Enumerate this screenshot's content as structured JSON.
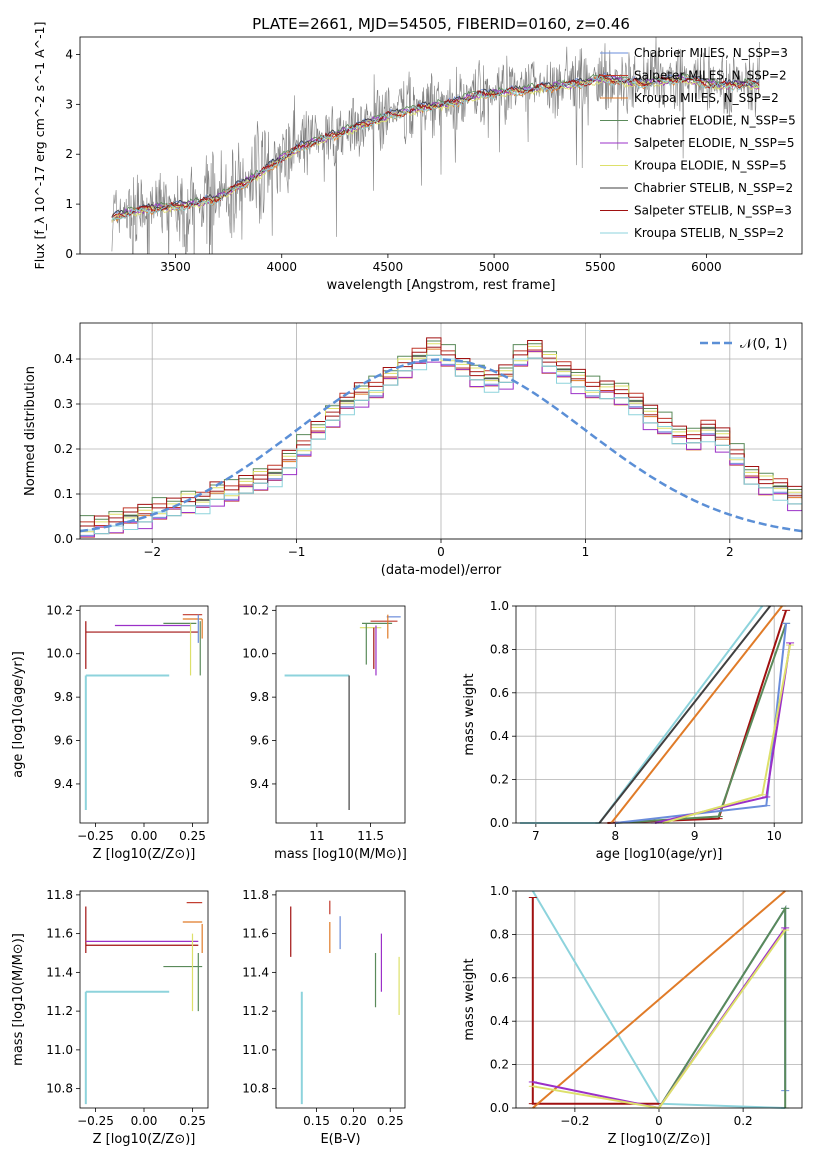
{
  "chart_data": [
    {
      "id": "spectrum",
      "type": "line",
      "title": "PLATE=2661, MJD=54505, FIBERID=0160, z=0.46",
      "xlabel": "wavelength [Angstrom, rest frame]",
      "ylabel": "Flux [f_λ 10^-17 erg cm^-2 s^-1 A^-1]",
      "xlim": [
        3050,
        6450
      ],
      "ylim": [
        0,
        4.35
      ],
      "xticks": [
        3500,
        4000,
        4500,
        5000,
        5500,
        6000
      ],
      "yticks": [
        0,
        1,
        2,
        3,
        4
      ],
      "grid": false,
      "legend_placement": "top-right",
      "series": [
        {
          "name": "Chabrier MILES, N_SSP=3",
          "color": "#6a8cdb"
        },
        {
          "name": "Salpeter MILES, N_SSP=2",
          "color": "#c0392b"
        },
        {
          "name": "Kroupa MILES, N_SSP=2",
          "color": "#e07b28"
        },
        {
          "name": "Chabrier ELODIE, N_SSP=5",
          "color": "#5a8a5a"
        },
        {
          "name": "Salpeter ELODIE, N_SSP=5",
          "color": "#9b30c8"
        },
        {
          "name": "Kroupa ELODIE, N_SSP=5",
          "color": "#dde06a"
        },
        {
          "name": "Chabrier STELIB, N_SSP=2",
          "color": "#404040"
        },
        {
          "name": "Salpeter STELIB, N_SSP=3",
          "color": "#a01010"
        },
        {
          "name": "Kroupa STELIB, N_SSP=2",
          "color": "#8dd3dc"
        }
      ],
      "model_continuum": {
        "x": [
          3200,
          3300,
          3400,
          3500,
          3600,
          3700,
          3800,
          3900,
          4000,
          4100,
          4200,
          4300,
          4400,
          4500,
          4600,
          4700,
          4800,
          4900,
          5000,
          5100,
          5200,
          5300,
          5400,
          5500,
          5600,
          5700,
          5800,
          5900,
          6000,
          6100,
          6200,
          6250
        ],
        "y": [
          0.75,
          0.9,
          0.95,
          0.98,
          1.05,
          1.15,
          1.4,
          1.65,
          1.95,
          2.2,
          2.35,
          2.5,
          2.65,
          2.8,
          2.9,
          3.0,
          3.05,
          3.2,
          3.25,
          3.3,
          3.35,
          3.4,
          3.45,
          3.55,
          3.5,
          3.45,
          3.5,
          3.55,
          3.45,
          3.4,
          3.45,
          3.4
        ]
      },
      "observed_color": "#808080"
    },
    {
      "id": "residuals",
      "type": "bar",
      "xlabel": "(data-model)/error",
      "ylabel": "Normed distribution",
      "xlim": [
        -2.5,
        2.5
      ],
      "ylim": [
        0,
        0.48
      ],
      "xticks": [
        -2,
        -1,
        0,
        1,
        2
      ],
      "yticks": [
        0.0,
        0.1,
        0.2,
        0.3,
        0.4
      ],
      "grid": true,
      "legend": [
        "N(0,1)"
      ],
      "legend_placement": "top-right",
      "gaussian_color": "#5b8fd6",
      "bin_edges_start": -2.5,
      "bin_width": 0.1,
      "values": [
        0.02,
        0.03,
        0.035,
        0.045,
        0.05,
        0.06,
        0.07,
        0.08,
        0.08,
        0.1,
        0.1,
        0.12,
        0.13,
        0.14,
        0.17,
        0.2,
        0.24,
        0.27,
        0.3,
        0.32,
        0.33,
        0.36,
        0.38,
        0.4,
        0.42,
        0.4,
        0.38,
        0.36,
        0.35,
        0.36,
        0.4,
        0.42,
        0.39,
        0.37,
        0.35,
        0.33,
        0.33,
        0.32,
        0.3,
        0.27,
        0.25,
        0.23,
        0.22,
        0.24,
        0.22,
        0.18,
        0.14,
        0.12,
        0.11,
        0.09,
        0.08,
        0.07,
        0.06,
        0.05,
        0.05,
        0.04,
        0.035,
        0.03,
        0.04,
        0.045,
        0.05
      ],
      "offsets": [
        0.0,
        0.012,
        -0.01,
        0.02,
        -0.015,
        0.008,
        -0.006,
        0.015,
        -0.012
      ]
    },
    {
      "id": "age-metallicity",
      "type": "scatter",
      "xlabel": "Z [log10(Z/Z⊙)]",
      "ylabel": "age  [log10(age/yr)]",
      "xlim": [
        -0.33,
        0.33
      ],
      "ylim": [
        9.22,
        10.22
      ],
      "xticks": [
        "-0.25",
        "0.00",
        "0.25"
      ],
      "xtick_values": [
        -0.25,
        0.0,
        0.25
      ],
      "yticks": [
        9.4,
        9.6,
        9.8,
        10.0,
        10.2
      ],
      "grid": false
    },
    {
      "id": "age-mass",
      "type": "scatter",
      "xlabel": "mass [log10(M/M⊙)]",
      "xlim": [
        10.62,
        11.82
      ],
      "ylim": [
        9.22,
        10.22
      ],
      "xticks": [
        11.0,
        11.5
      ],
      "yticks": [
        9.4,
        9.6,
        9.8,
        10.0,
        10.2
      ],
      "grid": false
    },
    {
      "id": "massweight-age",
      "type": "line",
      "xlabel": "age  [log10(age/yr)]",
      "ylabel": "mass weight",
      "xlim": [
        6.75,
        10.35
      ],
      "ylim": [
        0,
        1.0
      ],
      "xticks": [
        7,
        8,
        9,
        10
      ],
      "yticks": [
        0.0,
        0.2,
        0.4,
        0.6,
        0.8,
        1.0
      ],
      "grid": true,
      "series": [
        {
          "color": "#8dd3dc",
          "x": [
            6.8,
            7.8,
            9.85
          ],
          "y": [
            0.0,
            0.0,
            1.0
          ]
        },
        {
          "color": "#404040",
          "x": [
            7.8,
            9.95
          ],
          "y": [
            0.0,
            1.0
          ]
        },
        {
          "color": "#a01010",
          "x": [
            7.9,
            9.3,
            10.15
          ],
          "y": [
            0.0,
            0.02,
            0.98
          ]
        },
        {
          "color": "#e07b28",
          "x": [
            7.95,
            10.1
          ],
          "y": [
            0.0,
            1.0
          ]
        },
        {
          "color": "#5a8a5a",
          "x": [
            8.0,
            9.3,
            10.15
          ],
          "y": [
            0.0,
            0.03,
            0.92
          ]
        },
        {
          "color": "#6a8cdb",
          "x": [
            8.0,
            9.9,
            10.15
          ],
          "y": [
            0.0,
            0.08,
            0.92
          ]
        },
        {
          "color": "#9b30c8",
          "x": [
            8.5,
            9.9,
            10.2
          ],
          "y": [
            0.0,
            0.12,
            0.83
          ]
        },
        {
          "color": "#dde06a",
          "x": [
            8.6,
            9.85,
            10.2
          ],
          "y": [
            0.0,
            0.13,
            0.82
          ]
        }
      ]
    },
    {
      "id": "mass-metallicity",
      "type": "scatter",
      "xlabel": "Z [log10(Z/Z⊙)]",
      "ylabel": "mass [log10(M/M⊙)]",
      "xlim": [
        -0.33,
        0.33
      ],
      "ylim": [
        10.7,
        11.82
      ],
      "xticks": [
        "-0.25",
        "0.00",
        "0.25"
      ],
      "xtick_values": [
        -0.25,
        0.0,
        0.25
      ],
      "yticks": [
        10.8,
        11.0,
        11.2,
        11.4,
        11.6,
        11.8
      ],
      "grid": false
    },
    {
      "id": "mass-ebv",
      "type": "scatter",
      "xlabel": "E(B-V)",
      "xlim": [
        0.095,
        0.27
      ],
      "ylim": [
        10.7,
        11.82
      ],
      "xticks": [
        "0.15",
        "0.20",
        "0.25"
      ],
      "xtick_values": [
        0.15,
        0.2,
        0.25
      ],
      "yticks": [
        10.8,
        11.0,
        11.2,
        11.4,
        11.6,
        11.8
      ],
      "grid": false
    },
    {
      "id": "massweight-metallicity",
      "type": "line",
      "xlabel": "Z [log10(Z/Z⊙)]",
      "ylabel": "mass weight",
      "xlim": [
        -0.34,
        0.34
      ],
      "ylim": [
        0,
        1.0
      ],
      "xticks": [
        -0.2,
        0.0,
        0.2
      ],
      "yticks": [
        0.0,
        0.2,
        0.4,
        0.6,
        0.8,
        1.0
      ],
      "grid": true,
      "series": [
        {
          "color": "#8dd3dc",
          "x": [
            -0.3,
            0.0,
            0.3
          ],
          "y": [
            1.0,
            0.02,
            0.0
          ]
        },
        {
          "color": "#a01010",
          "x": [
            -0.3,
            -0.3,
            0.0
          ],
          "y": [
            0.97,
            0.02,
            0.02
          ]
        },
        {
          "color": "#e07b28",
          "x": [
            -0.3,
            0.3
          ],
          "y": [
            0.0,
            1.0
          ]
        },
        {
          "color": "#6a8cdb",
          "x": [
            0.0,
            0.3,
            0.3
          ],
          "y": [
            0.0,
            0.92,
            0.08
          ]
        },
        {
          "color": "#5a8a5a",
          "x": [
            0.0,
            0.3,
            0.3
          ],
          "y": [
            0.0,
            0.92,
            0.0
          ]
        },
        {
          "color": "#9b30c8",
          "x": [
            -0.3,
            0.0,
            0.3
          ],
          "y": [
            0.12,
            0.0,
            0.83
          ]
        },
        {
          "color": "#dde06a",
          "x": [
            -0.3,
            0.0,
            0.3
          ],
          "y": [
            0.1,
            0.0,
            0.82
          ]
        }
      ]
    }
  ]
}
